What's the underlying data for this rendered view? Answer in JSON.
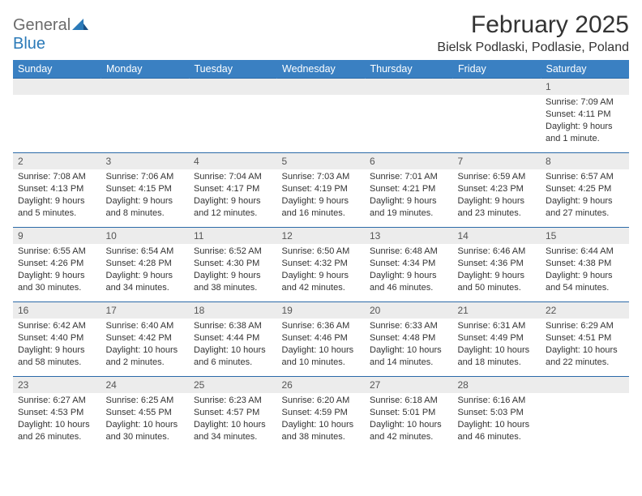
{
  "logo": {
    "text1": "General",
    "text2": "Blue"
  },
  "title": "February 2025",
  "location": "Bielsk Podlaski, Podlasie, Poland",
  "columns": [
    "Sunday",
    "Monday",
    "Tuesday",
    "Wednesday",
    "Thursday",
    "Friday",
    "Saturday"
  ],
  "colors": {
    "header_bg": "#3a80c2",
    "header_text": "#ffffff",
    "daynum_bg": "#ececec",
    "row_border": "#2b6aa8",
    "text": "#333333",
    "logo_gray": "#6b6b6b",
    "logo_blue": "#2b7ab8"
  },
  "weeks": [
    [
      {
        "n": "",
        "sunrise": "",
        "sunset": "",
        "daylight": ""
      },
      {
        "n": "",
        "sunrise": "",
        "sunset": "",
        "daylight": ""
      },
      {
        "n": "",
        "sunrise": "",
        "sunset": "",
        "daylight": ""
      },
      {
        "n": "",
        "sunrise": "",
        "sunset": "",
        "daylight": ""
      },
      {
        "n": "",
        "sunrise": "",
        "sunset": "",
        "daylight": ""
      },
      {
        "n": "",
        "sunrise": "",
        "sunset": "",
        "daylight": ""
      },
      {
        "n": "1",
        "sunrise": "Sunrise: 7:09 AM",
        "sunset": "Sunset: 4:11 PM",
        "daylight": "Daylight: 9 hours and 1 minute."
      }
    ],
    [
      {
        "n": "2",
        "sunrise": "Sunrise: 7:08 AM",
        "sunset": "Sunset: 4:13 PM",
        "daylight": "Daylight: 9 hours and 5 minutes."
      },
      {
        "n": "3",
        "sunrise": "Sunrise: 7:06 AM",
        "sunset": "Sunset: 4:15 PM",
        "daylight": "Daylight: 9 hours and 8 minutes."
      },
      {
        "n": "4",
        "sunrise": "Sunrise: 7:04 AM",
        "sunset": "Sunset: 4:17 PM",
        "daylight": "Daylight: 9 hours and 12 minutes."
      },
      {
        "n": "5",
        "sunrise": "Sunrise: 7:03 AM",
        "sunset": "Sunset: 4:19 PM",
        "daylight": "Daylight: 9 hours and 16 minutes."
      },
      {
        "n": "6",
        "sunrise": "Sunrise: 7:01 AM",
        "sunset": "Sunset: 4:21 PM",
        "daylight": "Daylight: 9 hours and 19 minutes."
      },
      {
        "n": "7",
        "sunrise": "Sunrise: 6:59 AM",
        "sunset": "Sunset: 4:23 PM",
        "daylight": "Daylight: 9 hours and 23 minutes."
      },
      {
        "n": "8",
        "sunrise": "Sunrise: 6:57 AM",
        "sunset": "Sunset: 4:25 PM",
        "daylight": "Daylight: 9 hours and 27 minutes."
      }
    ],
    [
      {
        "n": "9",
        "sunrise": "Sunrise: 6:55 AM",
        "sunset": "Sunset: 4:26 PM",
        "daylight": "Daylight: 9 hours and 30 minutes."
      },
      {
        "n": "10",
        "sunrise": "Sunrise: 6:54 AM",
        "sunset": "Sunset: 4:28 PM",
        "daylight": "Daylight: 9 hours and 34 minutes."
      },
      {
        "n": "11",
        "sunrise": "Sunrise: 6:52 AM",
        "sunset": "Sunset: 4:30 PM",
        "daylight": "Daylight: 9 hours and 38 minutes."
      },
      {
        "n": "12",
        "sunrise": "Sunrise: 6:50 AM",
        "sunset": "Sunset: 4:32 PM",
        "daylight": "Daylight: 9 hours and 42 minutes."
      },
      {
        "n": "13",
        "sunrise": "Sunrise: 6:48 AM",
        "sunset": "Sunset: 4:34 PM",
        "daylight": "Daylight: 9 hours and 46 minutes."
      },
      {
        "n": "14",
        "sunrise": "Sunrise: 6:46 AM",
        "sunset": "Sunset: 4:36 PM",
        "daylight": "Daylight: 9 hours and 50 minutes."
      },
      {
        "n": "15",
        "sunrise": "Sunrise: 6:44 AM",
        "sunset": "Sunset: 4:38 PM",
        "daylight": "Daylight: 9 hours and 54 minutes."
      }
    ],
    [
      {
        "n": "16",
        "sunrise": "Sunrise: 6:42 AM",
        "sunset": "Sunset: 4:40 PM",
        "daylight": "Daylight: 9 hours and 58 minutes."
      },
      {
        "n": "17",
        "sunrise": "Sunrise: 6:40 AM",
        "sunset": "Sunset: 4:42 PM",
        "daylight": "Daylight: 10 hours and 2 minutes."
      },
      {
        "n": "18",
        "sunrise": "Sunrise: 6:38 AM",
        "sunset": "Sunset: 4:44 PM",
        "daylight": "Daylight: 10 hours and 6 minutes."
      },
      {
        "n": "19",
        "sunrise": "Sunrise: 6:36 AM",
        "sunset": "Sunset: 4:46 PM",
        "daylight": "Daylight: 10 hours and 10 minutes."
      },
      {
        "n": "20",
        "sunrise": "Sunrise: 6:33 AM",
        "sunset": "Sunset: 4:48 PM",
        "daylight": "Daylight: 10 hours and 14 minutes."
      },
      {
        "n": "21",
        "sunrise": "Sunrise: 6:31 AM",
        "sunset": "Sunset: 4:49 PM",
        "daylight": "Daylight: 10 hours and 18 minutes."
      },
      {
        "n": "22",
        "sunrise": "Sunrise: 6:29 AM",
        "sunset": "Sunset: 4:51 PM",
        "daylight": "Daylight: 10 hours and 22 minutes."
      }
    ],
    [
      {
        "n": "23",
        "sunrise": "Sunrise: 6:27 AM",
        "sunset": "Sunset: 4:53 PM",
        "daylight": "Daylight: 10 hours and 26 minutes."
      },
      {
        "n": "24",
        "sunrise": "Sunrise: 6:25 AM",
        "sunset": "Sunset: 4:55 PM",
        "daylight": "Daylight: 10 hours and 30 minutes."
      },
      {
        "n": "25",
        "sunrise": "Sunrise: 6:23 AM",
        "sunset": "Sunset: 4:57 PM",
        "daylight": "Daylight: 10 hours and 34 minutes."
      },
      {
        "n": "26",
        "sunrise": "Sunrise: 6:20 AM",
        "sunset": "Sunset: 4:59 PM",
        "daylight": "Daylight: 10 hours and 38 minutes."
      },
      {
        "n": "27",
        "sunrise": "Sunrise: 6:18 AM",
        "sunset": "Sunset: 5:01 PM",
        "daylight": "Daylight: 10 hours and 42 minutes."
      },
      {
        "n": "28",
        "sunrise": "Sunrise: 6:16 AM",
        "sunset": "Sunset: 5:03 PM",
        "daylight": "Daylight: 10 hours and 46 minutes."
      },
      {
        "n": "",
        "sunrise": "",
        "sunset": "",
        "daylight": ""
      }
    ]
  ]
}
